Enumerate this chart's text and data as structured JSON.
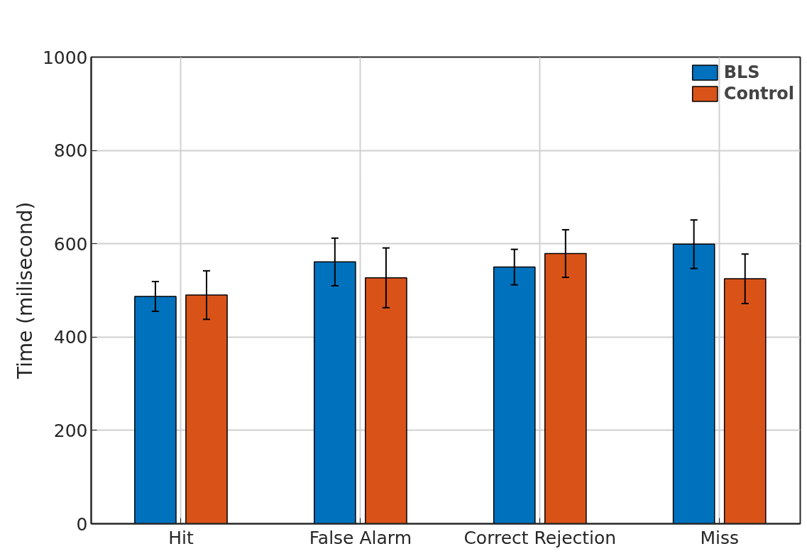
{
  "chart_data": {
    "type": "bar",
    "ylabel": "Time (milisecond)",
    "categories": [
      "Hit",
      "False Alarm",
      "Correct Rejection",
      "Miss"
    ],
    "series": [
      {
        "name": "BLS",
        "color": "#0072bd",
        "values": [
          487,
          561,
          550,
          599
        ],
        "errors": [
          32,
          51,
          38,
          52
        ]
      },
      {
        "name": "Control",
        "color": "#d95319",
        "values": [
          490,
          527,
          579,
          525
        ],
        "errors": [
          52,
          64,
          51,
          53
        ]
      }
    ],
    "ylim": [
      0,
      1000
    ],
    "yticks": [
      0,
      200,
      400,
      600,
      800,
      1000
    ],
    "grid": true,
    "legend": "top right"
  }
}
